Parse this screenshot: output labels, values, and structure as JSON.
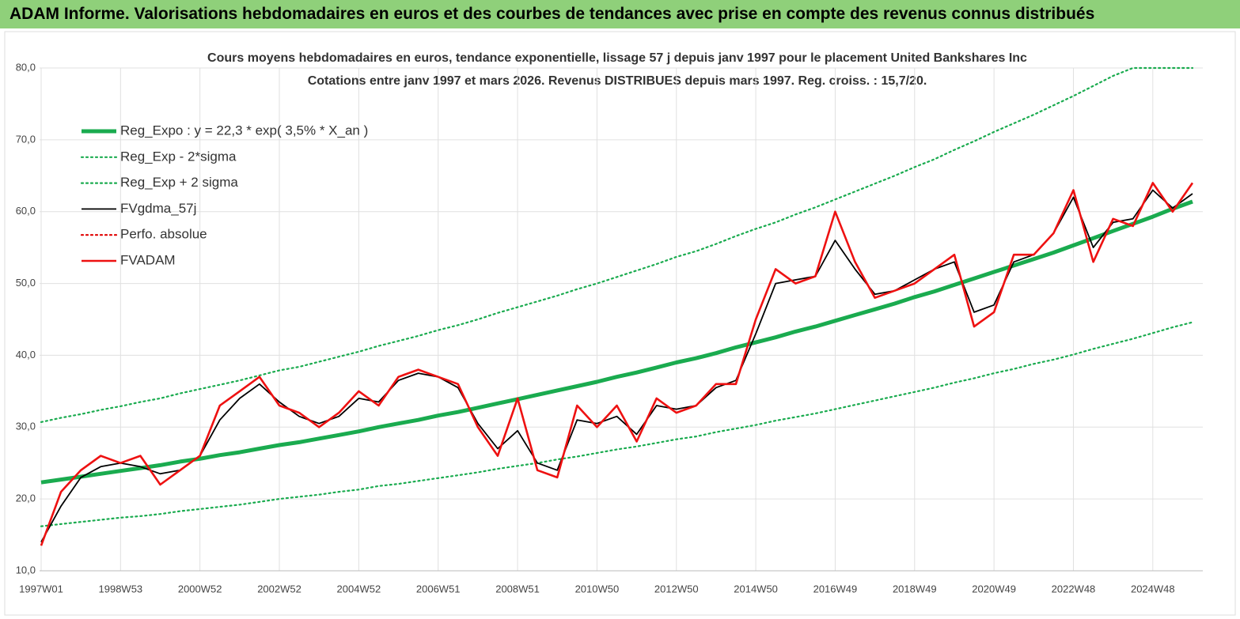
{
  "chart_data": {
    "type": "line",
    "report_title": "ADAM Informe. Valorisations hebdomadaires en euros et des courbes de tendances avec prise en compte des revenus connus distribués",
    "title": "Cours moyens hebdomadaires en euros, tendance exponentielle, lissage 57 j depuis janv 1997 pour le placement United Bankshares Inc",
    "subtitle": "Cotations entre janv 1997 et mars 2026. Revenus DISTRIBUES depuis mars 1997. Reg. croiss. : 15,7/20.",
    "categories": [
      "1997W01",
      null,
      null,
      null,
      "1998W53",
      null,
      null,
      null,
      "2000W52",
      null,
      null,
      null,
      "2002W52",
      null,
      null,
      null,
      "2004W52",
      null,
      null,
      null,
      "2006W51",
      null,
      null,
      null,
      "2008W51",
      null,
      null,
      null,
      "2010W50",
      null,
      null,
      null,
      "2012W50",
      null,
      null,
      null,
      "2014W50",
      null,
      null,
      null,
      "2016W49",
      null,
      null,
      null,
      "2018W49",
      null,
      null,
      null,
      "2020W49",
      null,
      null,
      null,
      "2022W48",
      null,
      null,
      null,
      "2024W48",
      null,
      null
    ],
    "ylim": [
      10,
      80
    ],
    "yticks": [
      {
        "value": 10,
        "label": "10,0"
      },
      {
        "value": 20,
        "label": "20,0"
      },
      {
        "value": 30,
        "label": "30,0"
      },
      {
        "value": 40,
        "label": "40,0"
      },
      {
        "value": 50,
        "label": "50,0"
      },
      {
        "value": 60,
        "label": "60,0"
      },
      {
        "value": 70,
        "label": "70,0"
      },
      {
        "value": 80,
        "label": "80,0"
      }
    ],
    "grid": true,
    "series": [
      {
        "name": "Reg_Expo : y = 22,3 * exp( 3,5% *  X_an )",
        "color": "#1aab4f",
        "style": "thick",
        "values": [
          22.3,
          22.7,
          23.1,
          23.5,
          23.9,
          24.3,
          24.7,
          25.2,
          25.6,
          26.1,
          26.5,
          27.0,
          27.5,
          27.9,
          28.4,
          28.9,
          29.4,
          30.0,
          30.5,
          31.0,
          31.6,
          32.1,
          32.7,
          33.3,
          33.9,
          34.5,
          35.1,
          35.7,
          36.3,
          37.0,
          37.6,
          38.3,
          39.0,
          39.6,
          40.3,
          41.1,
          41.8,
          42.5,
          43.3,
          44.0,
          44.8,
          45.6,
          46.4,
          47.2,
          48.1,
          48.9,
          49.8,
          50.7,
          51.6,
          52.5,
          53.4,
          54.3,
          55.3,
          56.3,
          57.3,
          58.3,
          59.3,
          60.4,
          61.4
        ]
      },
      {
        "name": "Reg_Exp - 2*sigma",
        "color": "#1aab4f",
        "style": "dotted",
        "values": [
          16.2,
          16.5,
          16.8,
          17.1,
          17.4,
          17.6,
          17.9,
          18.3,
          18.6,
          18.9,
          19.2,
          19.6,
          20.0,
          20.3,
          20.6,
          21.0,
          21.3,
          21.8,
          22.1,
          22.5,
          22.9,
          23.3,
          23.7,
          24.2,
          24.6,
          25.0,
          25.5,
          25.9,
          26.4,
          26.9,
          27.3,
          27.8,
          28.3,
          28.7,
          29.3,
          29.8,
          30.3,
          30.9,
          31.4,
          31.9,
          32.5,
          33.1,
          33.7,
          34.3,
          34.9,
          35.5,
          36.2,
          36.8,
          37.5,
          38.1,
          38.8,
          39.4,
          40.1,
          40.9,
          41.6,
          42.3,
          43.1,
          43.9,
          44.6
        ]
      },
      {
        "name": "Reg_Exp + 2 sigma",
        "color": "#1aab4f",
        "style": "dotted",
        "values": [
          30.7,
          31.3,
          31.8,
          32.4,
          32.9,
          33.5,
          34.0,
          34.7,
          35.3,
          35.9,
          36.5,
          37.2,
          37.9,
          38.4,
          39.1,
          39.8,
          40.5,
          41.3,
          42.0,
          42.7,
          43.5,
          44.2,
          45.0,
          45.9,
          46.7,
          47.5,
          48.3,
          49.2,
          50.0,
          50.9,
          51.8,
          52.7,
          53.7,
          54.5,
          55.5,
          56.6,
          57.6,
          58.5,
          59.6,
          60.6,
          61.7,
          62.8,
          63.9,
          65.0,
          66.2,
          67.3,
          68.6,
          69.8,
          71.1,
          72.3,
          73.5,
          74.8,
          76.1,
          77.5,
          78.9,
          80,
          80,
          80,
          80
        ]
      },
      {
        "name": "FVgdma_57j",
        "color": "#000000",
        "style": "solid",
        "values": [
          14,
          19,
          23,
          24.5,
          25,
          24.5,
          23.5,
          24,
          26,
          31,
          34,
          36,
          33.5,
          31.5,
          30.5,
          31.5,
          34,
          33.5,
          36.5,
          37.5,
          37,
          35.5,
          30.5,
          27,
          29.5,
          25,
          24,
          31,
          30.5,
          31.5,
          29,
          33,
          32.5,
          33,
          35.5,
          36.5,
          43,
          50,
          50.5,
          51,
          56,
          52,
          48.5,
          49,
          50.5,
          52,
          53,
          46,
          47,
          53,
          54,
          57,
          62,
          55,
          58.5,
          59,
          63,
          60.5,
          62.5
        ]
      },
      {
        "name": "Perfo. absolue",
        "color": "#e00000",
        "style": "dotted"
      },
      {
        "name": "FVADAM",
        "color": "#ee1111",
        "style": "thickred",
        "values": [
          13.5,
          21,
          24,
          26,
          25,
          26,
          22,
          24,
          26,
          33,
          35,
          37,
          33,
          32,
          30,
          32,
          35,
          33,
          37,
          38,
          37,
          36,
          30,
          26,
          34,
          24,
          23,
          33,
          30,
          33,
          28,
          34,
          32,
          33,
          36,
          36,
          45,
          52,
          50,
          51,
          60,
          53,
          48,
          49,
          50,
          52,
          54,
          44,
          46,
          54,
          54,
          57,
          63,
          53,
          59,
          58,
          64,
          60,
          64
        ]
      }
    ]
  }
}
